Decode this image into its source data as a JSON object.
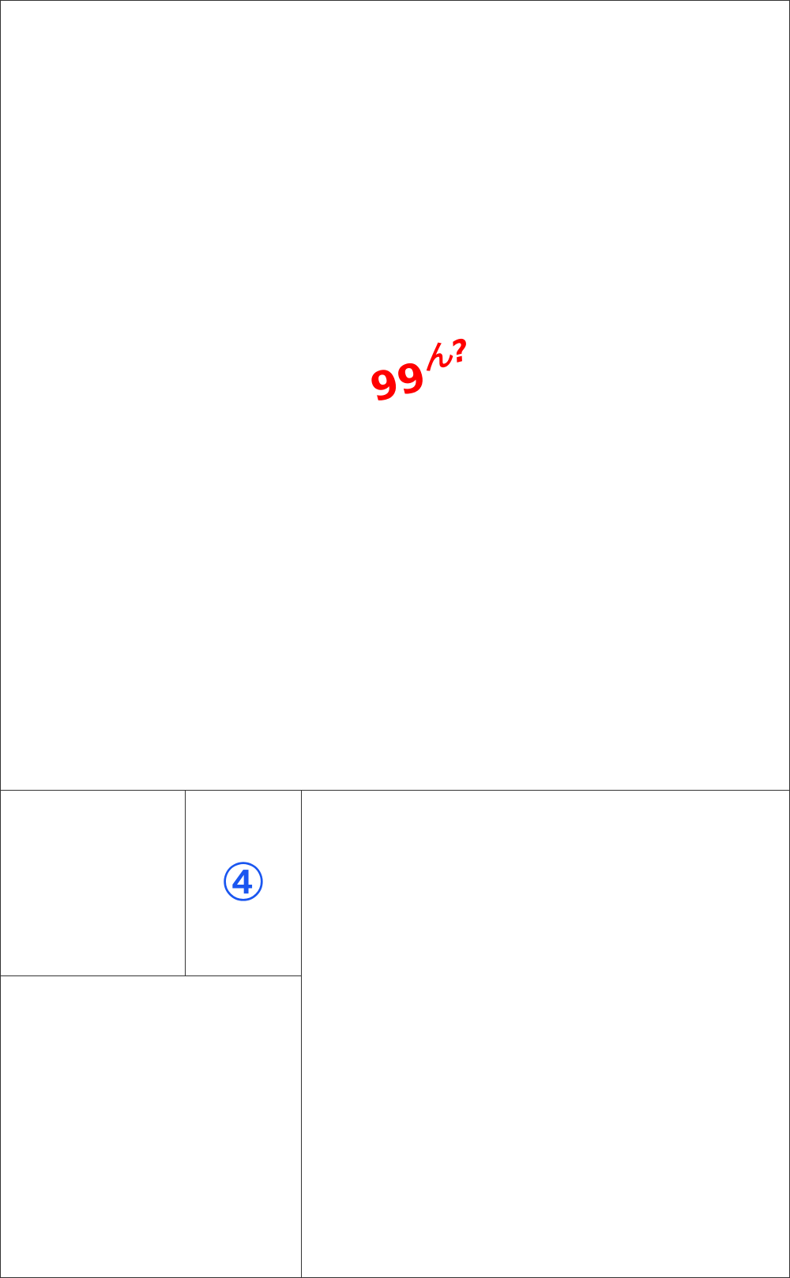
{
  "top_panel": {
    "number": "99",
    "exclaim": "ん?"
  },
  "middle_panel": {
    "circled_digit": "④"
  },
  "colors": {
    "red_text": "#ff0000",
    "blue_digit": "#1a56f0",
    "border": "#333333"
  }
}
